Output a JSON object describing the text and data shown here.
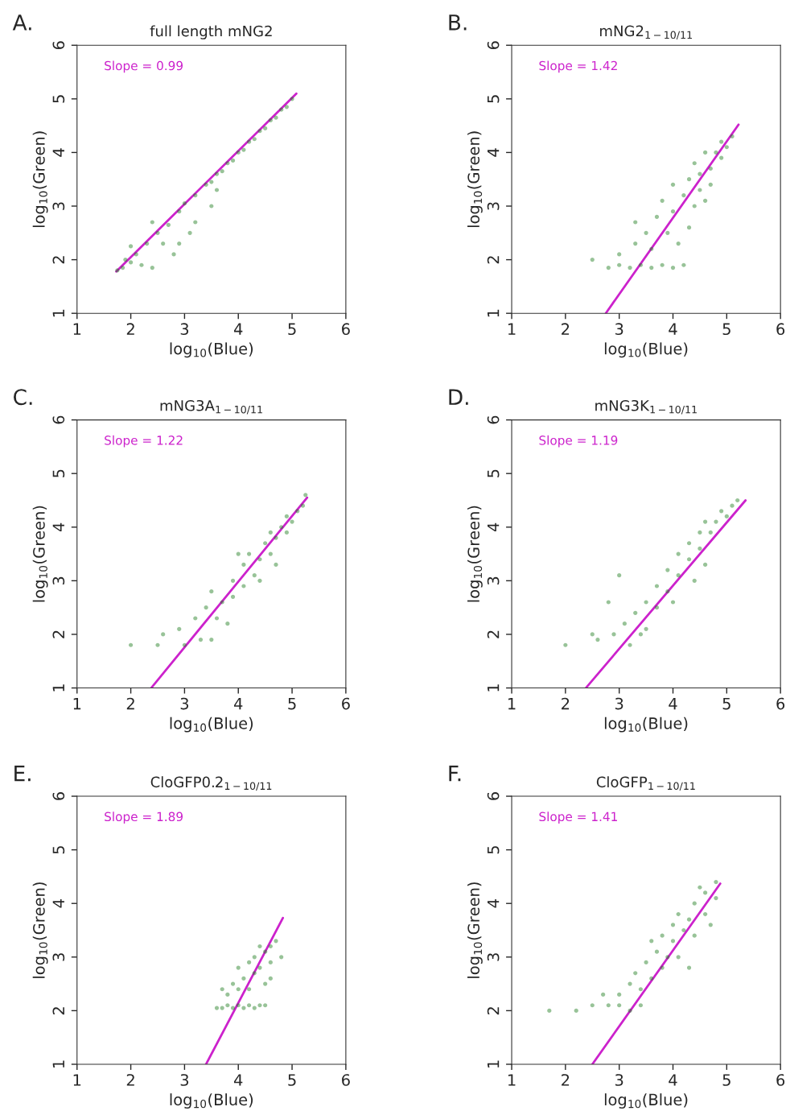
{
  "chart_data": [
    {
      "type": "scatter",
      "title": "full length mNG2",
      "xlabel": "log$_{10}$(Blue)",
      "ylabel": "log$_{10}$(Green)",
      "xlim": [
        1,
        6
      ],
      "ylim": [
        1,
        6
      ],
      "xticks": [
        1,
        2,
        3,
        4,
        5,
        6
      ],
      "yticks": [
        1,
        2,
        3,
        4,
        5,
        6
      ],
      "grid": false,
      "annotations": [
        "A.",
        "Slope = 0.99"
      ],
      "series": [
        {
          "color": "#1a7a1a",
          "marker": "circle",
          "x": [
            1.75,
            1.85,
            1.9,
            2.0,
            2.1,
            2.0,
            2.3,
            2.5,
            2.4,
            2.7,
            2.9,
            3.0,
            3.2,
            3.4,
            3.5,
            3.6,
            3.7,
            3.8,
            3.9,
            4.0,
            4.1,
            4.2,
            4.3,
            4.4,
            4.5,
            4.6,
            4.7,
            4.8,
            4.9,
            5.0,
            3.2,
            3.5,
            2.6,
            2.8,
            3.1,
            2.2,
            3.6,
            2.9,
            2.4
          ],
          "values": [
            1.8,
            1.85,
            2.0,
            1.95,
            2.1,
            2.25,
            2.3,
            2.5,
            2.7,
            2.65,
            2.9,
            3.05,
            3.2,
            3.4,
            3.45,
            3.6,
            3.65,
            3.8,
            3.85,
            4.0,
            4.05,
            4.2,
            4.25,
            4.4,
            4.45,
            4.6,
            4.65,
            4.8,
            4.85,
            5.0,
            2.7,
            3.0,
            2.3,
            2.1,
            2.5,
            1.9,
            3.3,
            2.3,
            1.85
          ]
        },
        {
          "type": "line",
          "color": "#cc22cc",
          "x": [
            1.73,
            5.08
          ],
          "values": [
            1.78,
            5.1
          ]
        }
      ]
    },
    {
      "type": "scatter",
      "title": "mNG2$_{1−10/11}$",
      "xlabel": "log$_{10}$(Blue)",
      "ylabel": "log$_{10}$(Green)",
      "xlim": [
        1,
        6
      ],
      "ylim": [
        1,
        6
      ],
      "xticks": [
        1,
        2,
        3,
        4,
        5,
        6
      ],
      "yticks": [
        1,
        2,
        3,
        4,
        5,
        6
      ],
      "grid": false,
      "annotations": [
        "B.",
        "Slope = 1.42"
      ],
      "series": [
        {
          "color": "#1a7a1a",
          "marker": "circle",
          "x": [
            2.5,
            2.8,
            3.0,
            3.2,
            3.4,
            3.6,
            3.8,
            4.0,
            4.2,
            3.0,
            3.3,
            3.5,
            3.3,
            3.7,
            3.9,
            4.0,
            4.1,
            3.8,
            4.2,
            4.0,
            4.4,
            4.3,
            4.5,
            4.4,
            4.7,
            4.6,
            4.8,
            4.9,
            5.1,
            4.5,
            4.7,
            4.9,
            3.6,
            4.3,
            4.6,
            5.0
          ],
          "values": [
            2.0,
            1.85,
            1.9,
            1.85,
            1.9,
            1.85,
            1.9,
            1.85,
            1.9,
            2.1,
            2.3,
            2.5,
            2.7,
            2.8,
            2.5,
            2.9,
            2.3,
            3.1,
            3.2,
            3.4,
            3.0,
            3.5,
            3.6,
            3.8,
            3.7,
            4.0,
            4.0,
            4.2,
            4.3,
            3.3,
            3.4,
            3.9,
            2.2,
            2.6,
            3.1,
            4.1
          ]
        },
        {
          "type": "line",
          "color": "#cc22cc",
          "x": [
            2.75,
            5.22
          ],
          "values": [
            1.0,
            4.52
          ]
        }
      ]
    },
    {
      "type": "scatter",
      "title": "mNG3A$_{1−10/11}$",
      "xlabel": "log$_{10}$(Blue)",
      "ylabel": "log$_{10}$(Green)",
      "xlim": [
        1,
        6
      ],
      "ylim": [
        1,
        6
      ],
      "xticks": [
        1,
        2,
        3,
        4,
        5,
        6
      ],
      "yticks": [
        1,
        2,
        3,
        4,
        5,
        6
      ],
      "grid": false,
      "annotations": [
        "C.",
        "Slope = 1.22"
      ],
      "series": [
        {
          "color": "#1a7a1a",
          "marker": "circle",
          "x": [
            2.0,
            2.5,
            2.6,
            2.9,
            3.0,
            3.3,
            3.5,
            3.2,
            3.4,
            3.6,
            3.7,
            3.5,
            3.9,
            3.9,
            4.1,
            4.1,
            4.3,
            4.2,
            4.4,
            4.5,
            4.6,
            4.6,
            4.7,
            4.8,
            4.9,
            4.9,
            5.0,
            5.1,
            5.2,
            5.25,
            4.7,
            3.8,
            4.4,
            4.0
          ],
          "values": [
            1.8,
            1.8,
            2.0,
            2.1,
            1.8,
            1.9,
            1.9,
            2.3,
            2.5,
            2.3,
            2.6,
            2.8,
            2.7,
            3.0,
            2.9,
            3.3,
            3.1,
            3.5,
            3.4,
            3.7,
            3.5,
            3.9,
            3.8,
            4.0,
            3.9,
            4.2,
            4.1,
            4.3,
            4.4,
            4.6,
            3.3,
            2.2,
            3.0,
            3.5
          ]
        },
        {
          "type": "line",
          "color": "#cc22cc",
          "x": [
            2.38,
            5.28
          ],
          "values": [
            1.0,
            4.55
          ]
        }
      ]
    },
    {
      "type": "scatter",
      "title": "mNG3K$_{1−10/11}$",
      "xlabel": "log$_{10}$(Blue)",
      "ylabel": "log$_{10}$(Green)",
      "xlim": [
        1,
        6
      ],
      "ylim": [
        1,
        6
      ],
      "xticks": [
        1,
        2,
        3,
        4,
        5,
        6
      ],
      "yticks": [
        1,
        2,
        3,
        4,
        5,
        6
      ],
      "grid": false,
      "annotations": [
        "D.",
        "Slope = 1.19"
      ],
      "series": [
        {
          "color": "#1a7a1a",
          "marker": "circle",
          "x": [
            2.0,
            2.5,
            2.6,
            2.9,
            3.2,
            3.1,
            3.3,
            3.5,
            3.5,
            3.7,
            3.7,
            3.9,
            3.9,
            4.1,
            4.1,
            4.3,
            4.3,
            4.5,
            4.5,
            4.7,
            4.6,
            4.8,
            4.9,
            5.0,
            5.1,
            5.2,
            4.4,
            3.0,
            2.8,
            4.6,
            4.0,
            3.4
          ],
          "values": [
            1.8,
            2.0,
            1.9,
            2.0,
            1.8,
            2.2,
            2.4,
            2.1,
            2.6,
            2.5,
            2.9,
            2.8,
            3.2,
            3.1,
            3.5,
            3.4,
            3.7,
            3.6,
            3.9,
            3.9,
            4.1,
            4.1,
            4.3,
            4.2,
            4.4,
            4.5,
            3.0,
            3.1,
            2.6,
            3.3,
            2.6,
            2.0
          ]
        },
        {
          "type": "line",
          "color": "#cc22cc",
          "x": [
            2.38,
            5.35
          ],
          "values": [
            1.0,
            4.5
          ]
        }
      ]
    },
    {
      "type": "scatter",
      "title": "CloGFP0.2$_{1−10/11}$",
      "xlabel": "log$_{10}$(Blue)",
      "ylabel": "log$_{10}$(Green)",
      "xlim": [
        1,
        6
      ],
      "ylim": [
        1,
        6
      ],
      "xticks": [
        1,
        2,
        3,
        4,
        5,
        6
      ],
      "yticks": [
        1,
        2,
        3,
        4,
        5,
        6
      ],
      "grid": false,
      "annotations": [
        "E.",
        "Slope = 1.89"
      ],
      "series": [
        {
          "color": "#1a7a1a",
          "marker": "circle",
          "x": [
            3.6,
            3.7,
            3.8,
            3.9,
            4.0,
            4.1,
            4.2,
            4.3,
            4.4,
            4.5,
            3.8,
            3.9,
            4.0,
            4.1,
            4.2,
            4.3,
            4.0,
            4.2,
            4.4,
            4.3,
            4.5,
            4.4,
            4.6,
            4.7,
            4.6,
            4.5,
            3.7,
            4.8,
            4.6
          ],
          "values": [
            2.05,
            2.05,
            2.1,
            2.05,
            2.1,
            2.05,
            2.1,
            2.05,
            2.1,
            2.1,
            2.3,
            2.5,
            2.4,
            2.6,
            2.4,
            2.7,
            2.8,
            2.9,
            2.8,
            3.0,
            3.1,
            3.2,
            3.2,
            3.3,
            2.9,
            2.5,
            2.4,
            3.0,
            2.6
          ]
        },
        {
          "type": "line",
          "color": "#cc22cc",
          "x": [
            3.4,
            4.83
          ],
          "values": [
            1.0,
            3.73
          ]
        }
      ]
    },
    {
      "type": "scatter",
      "title": "CloGFP$_{1−10/11}$",
      "xlabel": "log$_{10}$(Blue)",
      "ylabel": "log$_{10}$(Green)",
      "xlim": [
        1,
        6
      ],
      "ylim": [
        1,
        6
      ],
      "xticks": [
        1,
        2,
        3,
        4,
        5,
        6
      ],
      "yticks": [
        1,
        2,
        3,
        4,
        5,
        6
      ],
      "grid": false,
      "annotations": [
        "F.",
        "Slope = 1.41"
      ],
      "series": [
        {
          "color": "#1a7a1a",
          "marker": "circle",
          "x": [
            1.7,
            2.2,
            2.5,
            2.8,
            3.0,
            3.2,
            3.4,
            3.0,
            3.2,
            3.4,
            3.3,
            3.6,
            3.5,
            3.8,
            3.7,
            3.9,
            3.8,
            4.0,
            4.1,
            4.0,
            4.2,
            4.1,
            4.3,
            4.4,
            4.4,
            4.6,
            4.6,
            4.8,
            4.7,
            4.8,
            4.3,
            3.6,
            2.7,
            4.5
          ],
          "values": [
            2.0,
            2.0,
            2.1,
            2.1,
            2.1,
            2.0,
            2.1,
            2.3,
            2.5,
            2.4,
            2.7,
            2.6,
            2.9,
            2.8,
            3.1,
            3.0,
            3.4,
            3.3,
            3.0,
            3.6,
            3.5,
            3.8,
            3.7,
            3.4,
            4.0,
            3.8,
            4.2,
            4.1,
            3.6,
            4.4,
            2.8,
            3.3,
            2.3,
            4.3
          ]
        },
        {
          "type": "line",
          "color": "#cc22cc",
          "x": [
            2.5,
            4.88
          ],
          "values": [
            1.0,
            4.37
          ]
        }
      ]
    }
  ]
}
